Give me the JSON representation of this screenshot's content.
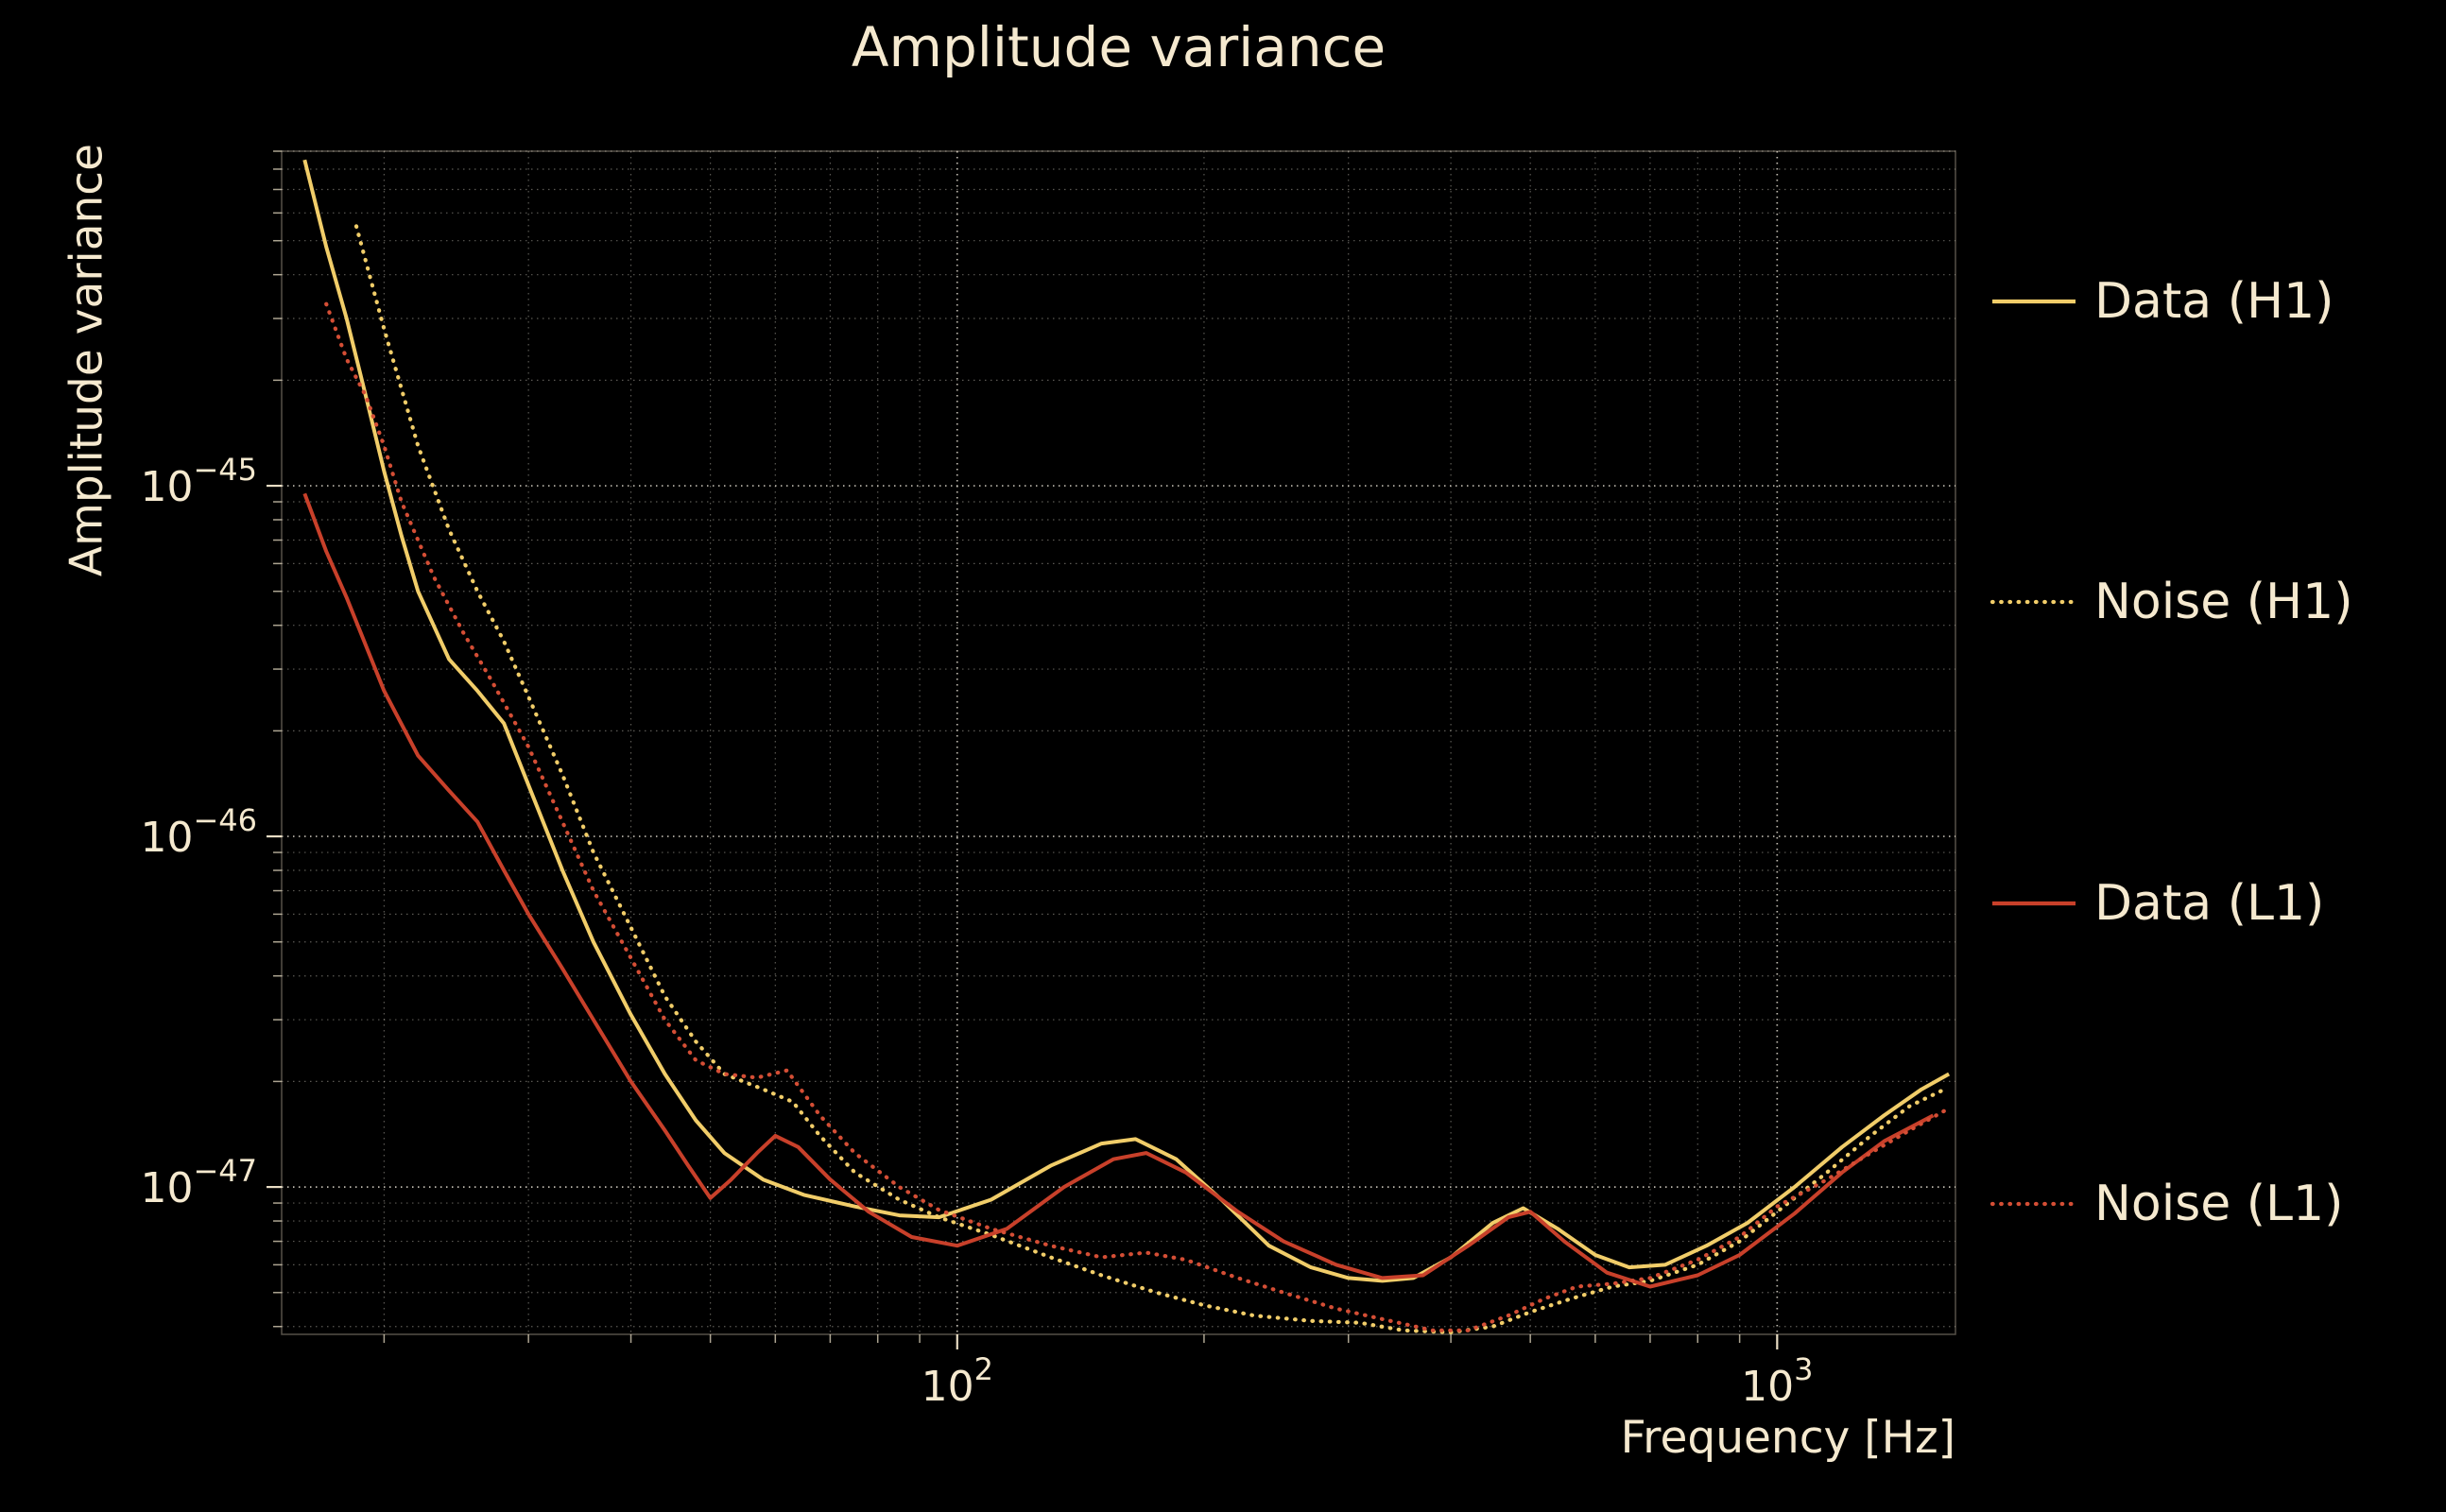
{
  "text_color": "#f5e9cf",
  "background_color": "#000000",
  "chart_data": {
    "type": "line",
    "title": "Amplitude variance",
    "xlabel": "Frequency [Hz]",
    "ylabel": "Amplitude variance",
    "xscale": "log",
    "yscale": "log",
    "xlim": [
      15,
      1650
    ],
    "ylim": [
      3.8e-48,
      9e-45
    ],
    "grid": true,
    "legend_position": "right-outside",
    "x_ticks": [
      {
        "base": "10",
        "exp": "2",
        "value": 100
      },
      {
        "base": "10",
        "exp": "3",
        "value": 1000
      }
    ],
    "y_ticks": [
      {
        "base": "10",
        "exp": "−45",
        "value": 1e-45
      },
      {
        "base": "10",
        "exp": "−46",
        "value": 1e-46
      },
      {
        "base": "10",
        "exp": "−47",
        "value": 1e-47
      }
    ],
    "series": [
      {
        "name": "Data (H1)",
        "color": "#f1cd69",
        "style": "solid",
        "points": [
          [
            16,
            8.5e-45
          ],
          [
            17,
            4.8e-45
          ],
          [
            18,
            3e-45
          ],
          [
            19,
            1.8e-45
          ],
          [
            20,
            1.1e-45
          ],
          [
            21,
            7.2e-46
          ],
          [
            22,
            5e-46
          ],
          [
            24,
            3.2e-46
          ],
          [
            26,
            2.6e-46
          ],
          [
            28,
            2.1e-46
          ],
          [
            30,
            1.4e-46
          ],
          [
            33,
            8e-47
          ],
          [
            36,
            5e-47
          ],
          [
            40,
            3.1e-47
          ],
          [
            44,
            2.1e-47
          ],
          [
            48,
            1.55e-47
          ],
          [
            52,
            1.25e-47
          ],
          [
            58,
            1.05e-47
          ],
          [
            65,
            9.5e-48
          ],
          [
            75,
            8.8e-48
          ],
          [
            85,
            8.3e-48
          ],
          [
            95,
            8.2e-48
          ],
          [
            110,
            9.2e-48
          ],
          [
            130,
            1.15e-47
          ],
          [
            150,
            1.33e-47
          ],
          [
            165,
            1.37e-47
          ],
          [
            185,
            1.2e-47
          ],
          [
            210,
            9.2e-48
          ],
          [
            240,
            6.8e-48
          ],
          [
            270,
            5.9e-48
          ],
          [
            300,
            5.5e-48
          ],
          [
            330,
            5.4e-48
          ],
          [
            360,
            5.5e-48
          ],
          [
            400,
            6.3e-48
          ],
          [
            450,
            7.9e-48
          ],
          [
            490,
            8.7e-48
          ],
          [
            540,
            7.6e-48
          ],
          [
            600,
            6.4e-48
          ],
          [
            660,
            5.9e-48
          ],
          [
            730,
            6e-48
          ],
          [
            820,
            6.8e-48
          ],
          [
            920,
            7.9e-48
          ],
          [
            1050,
            1e-47
          ],
          [
            1200,
            1.3e-47
          ],
          [
            1350,
            1.6e-47
          ],
          [
            1500,
            1.9e-47
          ],
          [
            1620,
            2.1e-47
          ]
        ]
      },
      {
        "name": "Noise (H1)",
        "color": "#f1cd69",
        "style": "dotted",
        "points": [
          [
            18.5,
            5.5e-45
          ],
          [
            20,
            2.8e-45
          ],
          [
            22,
            1.3e-45
          ],
          [
            24,
            7.5e-46
          ],
          [
            26,
            5e-46
          ],
          [
            28,
            3.6e-46
          ],
          [
            30,
            2.5e-46
          ],
          [
            33,
            1.5e-46
          ],
          [
            36,
            9e-47
          ],
          [
            40,
            5.5e-47
          ],
          [
            44,
            3.5e-47
          ],
          [
            48,
            2.6e-47
          ],
          [
            52,
            2.1e-47
          ],
          [
            58,
            1.9e-47
          ],
          [
            63,
            1.75e-47
          ],
          [
            68,
            1.4e-47
          ],
          [
            75,
            1.1e-47
          ],
          [
            85,
            9.2e-48
          ],
          [
            95,
            8.2e-48
          ],
          [
            110,
            7.3e-48
          ],
          [
            130,
            6.3e-48
          ],
          [
            150,
            5.6e-48
          ],
          [
            175,
            5e-48
          ],
          [
            200,
            4.6e-48
          ],
          [
            230,
            4.3e-48
          ],
          [
            270,
            4.15e-48
          ],
          [
            310,
            4.1e-48
          ],
          [
            350,
            3.9e-48
          ],
          [
            400,
            3.85e-48
          ],
          [
            450,
            4e-48
          ],
          [
            500,
            4.4e-48
          ],
          [
            560,
            4.8e-48
          ],
          [
            630,
            5.2e-48
          ],
          [
            700,
            5.4e-48
          ],
          [
            800,
            6e-48
          ],
          [
            900,
            7e-48
          ],
          [
            1000,
            8.5e-48
          ],
          [
            1150,
            1.1e-47
          ],
          [
            1300,
            1.4e-47
          ],
          [
            1450,
            1.7e-47
          ],
          [
            1600,
            1.9e-47
          ]
        ]
      },
      {
        "name": "Data (L1)",
        "color": "#c8402a",
        "style": "solid",
        "points": [
          [
            16,
            9.5e-46
          ],
          [
            17,
            6.5e-46
          ],
          [
            18,
            4.8e-46
          ],
          [
            20,
            2.6e-46
          ],
          [
            22,
            1.7e-46
          ],
          [
            24,
            1.35e-46
          ],
          [
            26,
            1.1e-46
          ],
          [
            28,
            8e-47
          ],
          [
            30,
            6e-47
          ],
          [
            33,
            4.2e-47
          ],
          [
            36,
            3e-47
          ],
          [
            40,
            2e-47
          ],
          [
            44,
            1.45e-47
          ],
          [
            47,
            1.15e-47
          ],
          [
            50,
            9.3e-48
          ],
          [
            53,
            1.05e-47
          ],
          [
            57,
            1.25e-47
          ],
          [
            60,
            1.4e-47
          ],
          [
            64,
            1.3e-47
          ],
          [
            70,
            1.05e-47
          ],
          [
            78,
            8.5e-48
          ],
          [
            88,
            7.2e-48
          ],
          [
            100,
            6.8e-48
          ],
          [
            115,
            7.6e-48
          ],
          [
            135,
            1e-47
          ],
          [
            155,
            1.2e-47
          ],
          [
            170,
            1.25e-47
          ],
          [
            190,
            1.1e-47
          ],
          [
            220,
            8.5e-48
          ],
          [
            250,
            7e-48
          ],
          [
            290,
            6e-48
          ],
          [
            330,
            5.5e-48
          ],
          [
            370,
            5.6e-48
          ],
          [
            420,
            6.8e-48
          ],
          [
            470,
            8.2e-48
          ],
          [
            500,
            8.5e-48
          ],
          [
            550,
            7e-48
          ],
          [
            620,
            5.7e-48
          ],
          [
            700,
            5.2e-48
          ],
          [
            800,
            5.6e-48
          ],
          [
            900,
            6.4e-48
          ],
          [
            1050,
            8.4e-48
          ],
          [
            1200,
            1.1e-47
          ],
          [
            1350,
            1.35e-47
          ],
          [
            1550,
            1.6e-47
          ]
        ]
      },
      {
        "name": "Noise (L1)",
        "color": "#d44e35",
        "style": "dotted",
        "points": [
          [
            17,
            3.3e-45
          ],
          [
            18,
            2.3e-45
          ],
          [
            19,
            1.8e-45
          ],
          [
            20,
            1.3e-45
          ],
          [
            21,
            9e-46
          ],
          [
            23,
            5.5e-46
          ],
          [
            25,
            3.8e-46
          ],
          [
            27,
            2.8e-46
          ],
          [
            30,
            1.8e-46
          ],
          [
            33,
            1.1e-46
          ],
          [
            36,
            7e-47
          ],
          [
            40,
            4.5e-47
          ],
          [
            44,
            3e-47
          ],
          [
            48,
            2.3e-47
          ],
          [
            52,
            2.1e-47
          ],
          [
            57,
            2.05e-47
          ],
          [
            62,
            2.15e-47
          ],
          [
            68,
            1.6e-47
          ],
          [
            75,
            1.25e-47
          ],
          [
            85,
            1e-47
          ],
          [
            95,
            8.6e-48
          ],
          [
            110,
            7.6e-48
          ],
          [
            130,
            6.8e-48
          ],
          [
            150,
            6.3e-48
          ],
          [
            170,
            6.5e-48
          ],
          [
            190,
            6.2e-48
          ],
          [
            220,
            5.5e-48
          ],
          [
            250,
            5e-48
          ],
          [
            290,
            4.5e-48
          ],
          [
            330,
            4.2e-48
          ],
          [
            380,
            3.9e-48
          ],
          [
            420,
            3.9e-48
          ],
          [
            470,
            4.3e-48
          ],
          [
            520,
            4.8e-48
          ],
          [
            570,
            5.2e-48
          ],
          [
            630,
            5.3e-48
          ],
          [
            700,
            5.5e-48
          ],
          [
            800,
            6.2e-48
          ],
          [
            900,
            7.2e-48
          ],
          [
            1000,
            8.8e-48
          ],
          [
            1150,
            1.05e-47
          ],
          [
            1300,
            1.25e-47
          ],
          [
            1450,
            1.45e-47
          ],
          [
            1600,
            1.65e-47
          ]
        ]
      }
    ]
  }
}
